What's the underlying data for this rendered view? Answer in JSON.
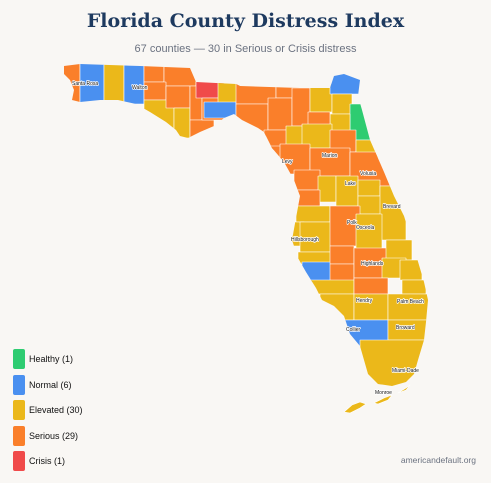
{
  "title": "Florida County Distress Index",
  "subtitle": "67 counties — 30 in Serious or Crisis distress",
  "source": "americandefault.org",
  "colors": {
    "healthy": "#2ecc71",
    "normal": "#4a90f0",
    "elevated": "#ebb81a",
    "serious": "#fa7f2a",
    "crisis": "#f04a4a"
  },
  "legend": [
    {
      "key": "healthy",
      "label": "Healthy (1)"
    },
    {
      "key": "normal",
      "label": "Normal (6)"
    },
    {
      "key": "elevated",
      "label": "Elevated (30)"
    },
    {
      "key": "serious",
      "label": "Serious (29)"
    },
    {
      "key": "crisis",
      "label": "Crisis (1)"
    }
  ],
  "county_labels": [
    "Santa Rosa",
    "Walton",
    "Marion",
    "Levy",
    "Volusia",
    "Lake",
    "Brevard",
    "Polk",
    "Osceola",
    "Hillsborough",
    "Highlands",
    "Hendry",
    "Palm Beach",
    "Collier",
    "Broward",
    "Miami-Dade",
    "Monroe"
  ]
}
